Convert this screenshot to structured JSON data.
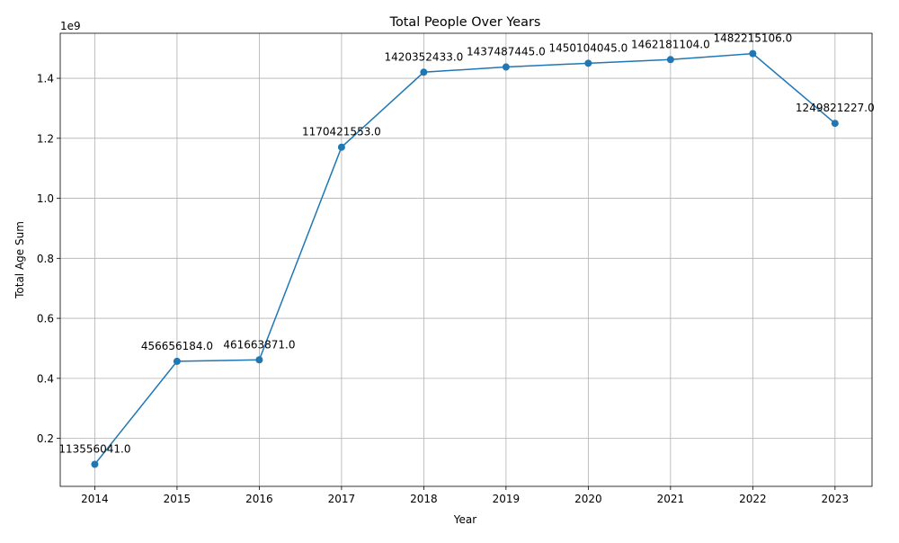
{
  "chart_data": {
    "type": "line",
    "title": "Total People Over Years",
    "xlabel": "Year",
    "ylabel": "Total Age Sum",
    "y_offset_label": "1e9",
    "x": [
      2014,
      2015,
      2016,
      2017,
      2018,
      2019,
      2020,
      2021,
      2022,
      2023
    ],
    "x_tick_labels": [
      "2014",
      "2015",
      "2016",
      "2017",
      "2018",
      "2019",
      "2020",
      "2021",
      "2022",
      "2023"
    ],
    "y_ticks": [
      200000000,
      400000000,
      600000000,
      800000000,
      1000000000,
      1200000000,
      1400000000
    ],
    "y_tick_labels": [
      "0.2",
      "0.4",
      "0.6",
      "0.8",
      "1.0",
      "1.2",
      "1.4"
    ],
    "ylim": [
      40000000,
      1550000000
    ],
    "xlim": [
      2013.58,
      2023.45
    ],
    "grid": true,
    "line_color": "#1f77b4",
    "series": [
      {
        "values": [
          113556041,
          456656184,
          461663871,
          1170421553,
          1420352433,
          1437487445,
          1450104045,
          1462181104,
          1482215106,
          1249821227
        ],
        "point_labels": [
          "113556041.0",
          "456656184.0",
          "461663871.0",
          "1170421553.0",
          "1420352433.0",
          "1437487445.0",
          "1450104045.0",
          "1462181104.0",
          "1482215106.0",
          "1249821227.0"
        ]
      }
    ]
  }
}
